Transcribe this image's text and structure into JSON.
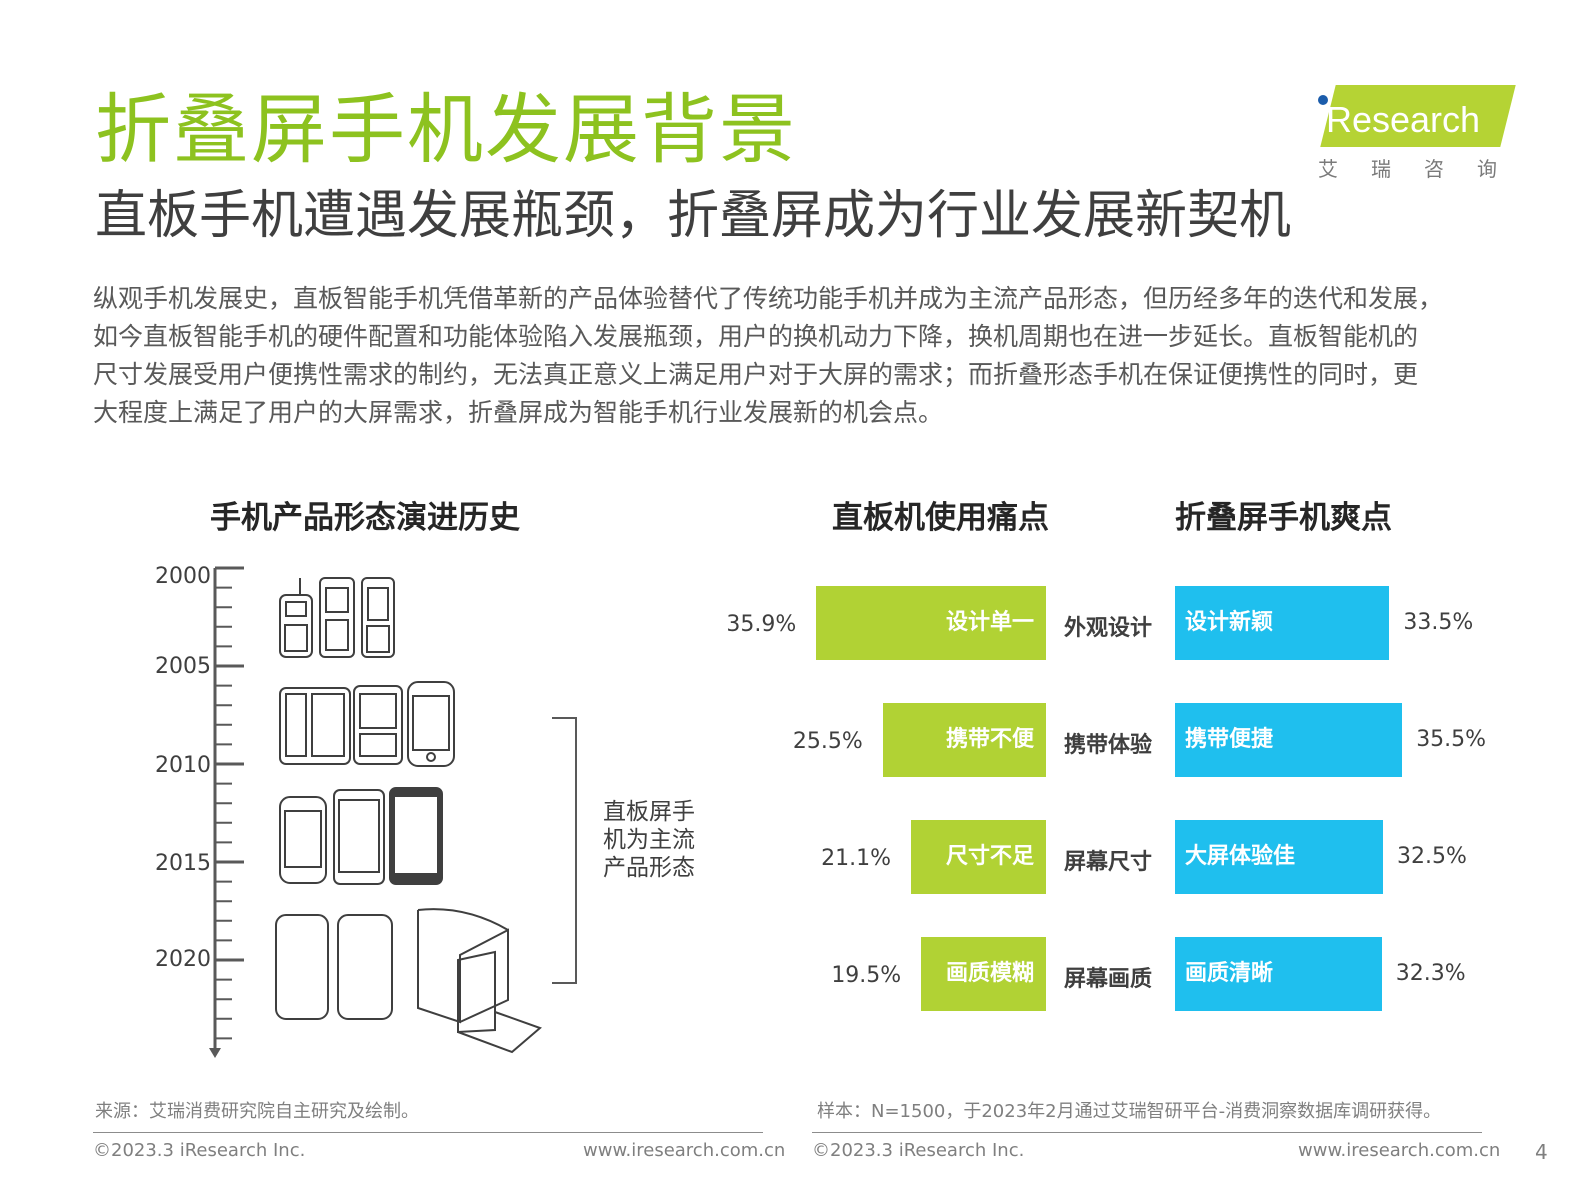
{
  "header": {
    "title": "折叠屏手机发展背景",
    "subtitle": "直板手机遭遇发展瓶颈，折叠屏成为行业发展新契机"
  },
  "logo": {
    "brand": "iResearch",
    "cn": "艾瑞咨询",
    "band_color": "#b5d334",
    "dot_color": "#1b5cab"
  },
  "body_lines": [
    "纵观手机发展史，直板智能手机凭借革新的产品体验替代了传统功能手机并成为主流产品形态，但历经多年的迭代和发展，",
    "如今直板智能手机的硬件配置和功能体验陷入发展瓶颈，用户的换机动力下降，换机周期也在进一步延长。直板智能机的",
    "尺寸发展受用户便携性需求的制约，无法真正意义上满足用户对于大屏的需求；而折叠形态手机在保证便携性的同时，更",
    "大程度上满足了用户的大屏需求，折叠屏成为智能手机行业发展新的机会点。"
  ],
  "timeline": {
    "title": "手机产品形态演进历史",
    "years": [
      "2000",
      "2005",
      "2010",
      "2015",
      "2020"
    ],
    "bracket_label": "直板屏手机为主流产品形态"
  },
  "chart_data": {
    "type": "bar",
    "orientation": "horizontal-butterfly",
    "categories": [
      "外观设计",
      "携带体验",
      "屏幕尺寸",
      "屏幕画质"
    ],
    "series": [
      {
        "name": "直板机使用痛点",
        "labels": [
          "设计单一",
          "携带不便",
          "尺寸不足",
          "画质模糊"
        ],
        "values": [
          35.9,
          25.5,
          21.1,
          19.5
        ],
        "color": "#b1d234"
      },
      {
        "name": "折叠屏手机爽点",
        "labels": [
          "设计新颖",
          "携带便捷",
          "大屏体验佳",
          "画质清晰"
        ],
        "values": [
          33.5,
          35.5,
          32.5,
          32.3
        ],
        "color": "#1fbfee"
      }
    ],
    "unit": "%"
  },
  "notes": {
    "source": "来源：艾瑞消费研究院自主研究及绘制。",
    "sample": "样本：N=1500，于2023年2月通过艾瑞智研平台-消费洞察数据库调研获得。"
  },
  "footer": {
    "copyright_left": "©2023.3 iResearch Inc.",
    "url_left": "www.iresearch.com.cn",
    "copyright_right": "©2023.3 iResearch Inc.",
    "url_right": "www.iresearch.com.cn",
    "page": "4"
  }
}
